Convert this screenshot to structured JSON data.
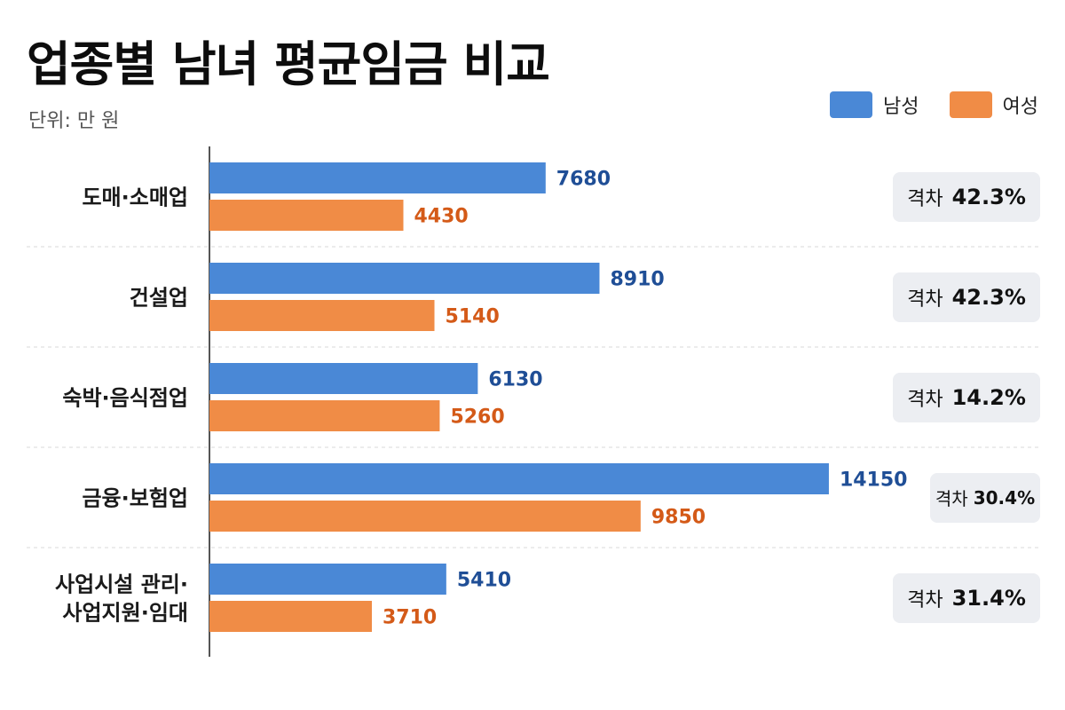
{
  "header": {
    "title": "업종별 남녀 평균임금 비교",
    "unit": "단위: 만 원"
  },
  "legend": [
    {
      "name": "남성",
      "color": "#4a88d6"
    },
    {
      "name": "여성",
      "color": "#f08c46"
    }
  ],
  "colors": {
    "male_bar": "#4a88d6",
    "female_bar": "#f08c46",
    "male_value_text": "#1f4e96",
    "female_value_text": "#d45a18",
    "badge_bg": "#eceef2",
    "separator": "#d8d8d8",
    "axis": "#555555"
  },
  "chart_data": {
    "type": "bar",
    "orientation": "horizontal",
    "title": "업종별 남녀 평균임금 비교",
    "unit": "단위: 만 원",
    "legend_position": "top-right",
    "grid": false,
    "xlim": [
      0,
      14800
    ],
    "categories": [
      [
        "도매·소매업"
      ],
      [
        "건설업"
      ],
      [
        "숙박·음식점업"
      ],
      [
        "금융·보험업"
      ],
      [
        "사업시설 관리·",
        "사업지원·임대"
      ]
    ],
    "series": [
      {
        "name": "남성",
        "values": [
          7680,
          8910,
          6130,
          14150,
          5410
        ]
      },
      {
        "name": "여성",
        "values": [
          4430,
          5140,
          5260,
          9850,
          3710
        ]
      }
    ],
    "gap_label": "격차",
    "gaps": [
      "42.3%",
      "42.3%",
      "14.2%",
      "30.4%",
      "31.4%"
    ]
  }
}
